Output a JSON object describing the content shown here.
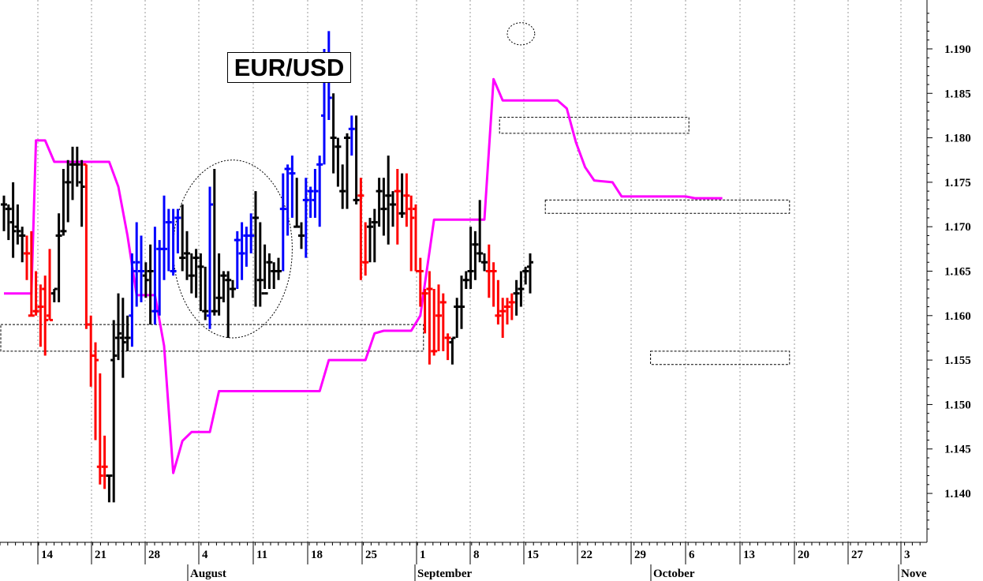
{
  "chart_data": {
    "type": "ohlc",
    "title": "EUR/USD",
    "y_ticks": [
      "1.190",
      "1.185",
      "1.180",
      "1.175",
      "1.170",
      "1.165",
      "1.160",
      "1.155",
      "1.150",
      "1.145",
      "1.140"
    ],
    "ylim": [
      1.1345,
      1.1955
    ],
    "x_tick_labels": [
      "14",
      "21",
      "28",
      "4",
      "11",
      "18",
      "25",
      "1",
      "8",
      "15",
      "22",
      "29",
      "6",
      "13",
      "20",
      "27",
      "3"
    ],
    "month_labels": [
      "August",
      "September",
      "October",
      "Nove"
    ],
    "colors": {
      "up_black": "#000000",
      "down_red": "#ff0000",
      "highlight_blue": "#0000ff",
      "stop_line": "#ff00ff"
    },
    "bars": [
      {
        "o": 1.1725,
        "h": 1.1735,
        "l": 1.1695,
        "c": 1.1725,
        "color": "black"
      },
      {
        "o": 1.172,
        "h": 1.1725,
        "l": 1.1685,
        "c": 1.172,
        "color": "black"
      },
      {
        "o": 1.1705,
        "h": 1.175,
        "l": 1.1665,
        "c": 1.1695,
        "color": "black"
      },
      {
        "o": 1.17,
        "h": 1.1725,
        "l": 1.168,
        "c": 1.1695,
        "color": "black"
      },
      {
        "o": 1.169,
        "h": 1.17,
        "l": 1.166,
        "c": 1.169,
        "color": "black"
      },
      {
        "o": 1.167,
        "h": 1.169,
        "l": 1.164,
        "c": 1.167,
        "color": "red"
      },
      {
        "o": 1.16,
        "h": 1.1695,
        "l": 1.16,
        "c": 1.16,
        "color": "red"
      },
      {
        "o": 1.1605,
        "h": 1.165,
        "l": 1.16,
        "c": 1.1605,
        "color": "red"
      },
      {
        "o": 1.161,
        "h": 1.1635,
        "l": 1.1565,
        "c": 1.161,
        "color": "red"
      },
      {
        "o": 1.163,
        "h": 1.1645,
        "l": 1.1555,
        "c": 1.1595,
        "color": "red"
      },
      {
        "o": 1.16,
        "h": 1.1675,
        "l": 1.1595,
        "c": 1.1595,
        "color": "red"
      },
      {
        "o": 1.1625,
        "h": 1.163,
        "l": 1.1615,
        "c": 1.163,
        "color": "black"
      },
      {
        "o": 1.169,
        "h": 1.1715,
        "l": 1.1615,
        "c": 1.169,
        "color": "black"
      },
      {
        "o": 1.1695,
        "h": 1.1765,
        "l": 1.169,
        "c": 1.1695,
        "color": "black"
      },
      {
        "o": 1.175,
        "h": 1.1775,
        "l": 1.1705,
        "c": 1.175,
        "color": "black"
      },
      {
        "o": 1.177,
        "h": 1.179,
        "l": 1.173,
        "c": 1.177,
        "color": "black"
      },
      {
        "o": 1.177,
        "h": 1.179,
        "l": 1.1745,
        "c": 1.177,
        "color": "black"
      },
      {
        "o": 1.175,
        "h": 1.1775,
        "l": 1.17,
        "c": 1.1745,
        "color": "black"
      },
      {
        "o": 1.177,
        "h": 1.177,
        "l": 1.1585,
        "c": 1.159,
        "color": "red"
      },
      {
        "o": 1.159,
        "h": 1.16,
        "l": 1.152,
        "c": 1.1555,
        "color": "red"
      },
      {
        "o": 1.1555,
        "h": 1.157,
        "l": 1.146,
        "c": 1.155,
        "color": "red"
      },
      {
        "o": 1.143,
        "h": 1.1535,
        "l": 1.141,
        "c": 1.142,
        "color": "red"
      },
      {
        "o": 1.143,
        "h": 1.1465,
        "l": 1.1405,
        "c": 1.143,
        "color": "red"
      },
      {
        "o": 1.142,
        "h": 1.142,
        "l": 1.139,
        "c": 1.142,
        "color": "black"
      },
      {
        "o": 1.155,
        "h": 1.1595,
        "l": 1.139,
        "c": 1.1555,
        "color": "black"
      },
      {
        "o": 1.1575,
        "h": 1.1625,
        "l": 1.155,
        "c": 1.158,
        "color": "black"
      },
      {
        "o": 1.1575,
        "h": 1.162,
        "l": 1.153,
        "c": 1.157,
        "color": "black"
      },
      {
        "o": 1.1575,
        "h": 1.16,
        "l": 1.156,
        "c": 1.1575,
        "color": "black"
      },
      {
        "o": 1.16,
        "h": 1.167,
        "l": 1.1565,
        "c": 1.166,
        "color": "blue"
      },
      {
        "o": 1.165,
        "h": 1.1705,
        "l": 1.161,
        "c": 1.166,
        "color": "blue"
      },
      {
        "o": 1.165,
        "h": 1.169,
        "l": 1.1615,
        "c": 1.165,
        "color": "blue"
      },
      {
        "o": 1.1645,
        "h": 1.166,
        "l": 1.162,
        "c": 1.164,
        "color": "black"
      },
      {
        "o": 1.165,
        "h": 1.168,
        "l": 1.159,
        "c": 1.165,
        "color": "black"
      },
      {
        "o": 1.1605,
        "h": 1.17,
        "l": 1.159,
        "c": 1.1605,
        "color": "blue"
      },
      {
        "o": 1.1675,
        "h": 1.1685,
        "l": 1.16,
        "c": 1.1675,
        "color": "blue"
      },
      {
        "o": 1.1675,
        "h": 1.1735,
        "l": 1.164,
        "c": 1.1675,
        "color": "blue"
      },
      {
        "o": 1.1705,
        "h": 1.172,
        "l": 1.165,
        "c": 1.1705,
        "color": "blue"
      },
      {
        "o": 1.165,
        "h": 1.172,
        "l": 1.1645,
        "c": 1.165,
        "color": "blue"
      },
      {
        "o": 1.171,
        "h": 1.172,
        "l": 1.167,
        "c": 1.171,
        "color": "blue"
      },
      {
        "o": 1.1665,
        "h": 1.1725,
        "l": 1.165,
        "c": 1.1665,
        "color": "black"
      },
      {
        "o": 1.167,
        "h": 1.1695,
        "l": 1.164,
        "c": 1.167,
        "color": "black"
      },
      {
        "o": 1.1645,
        "h": 1.167,
        "l": 1.1625,
        "c": 1.1645,
        "color": "black"
      },
      {
        "o": 1.1665,
        "h": 1.1675,
        "l": 1.162,
        "c": 1.1665,
        "color": "black"
      },
      {
        "o": 1.1655,
        "h": 1.167,
        "l": 1.1605,
        "c": 1.1655,
        "color": "black"
      },
      {
        "o": 1.1605,
        "h": 1.1655,
        "l": 1.1595,
        "c": 1.1605,
        "color": "black"
      },
      {
        "o": 1.16,
        "h": 1.1745,
        "l": 1.1585,
        "c": 1.1725,
        "color": "blue"
      },
      {
        "o": 1.1605,
        "h": 1.1765,
        "l": 1.16,
        "c": 1.1605,
        "color": "black"
      },
      {
        "o": 1.162,
        "h": 1.167,
        "l": 1.16,
        "c": 1.162,
        "color": "black"
      },
      {
        "o": 1.1645,
        "h": 1.165,
        "l": 1.1615,
        "c": 1.1645,
        "color": "black"
      },
      {
        "o": 1.164,
        "h": 1.165,
        "l": 1.1575,
        "c": 1.164,
        "color": "black"
      },
      {
        "o": 1.163,
        "h": 1.164,
        "l": 1.162,
        "c": 1.163,
        "color": "black"
      },
      {
        "o": 1.1685,
        "h": 1.1695,
        "l": 1.163,
        "c": 1.1685,
        "color": "blue"
      },
      {
        "o": 1.167,
        "h": 1.1705,
        "l": 1.164,
        "c": 1.167,
        "color": "blue"
      },
      {
        "o": 1.169,
        "h": 1.17,
        "l": 1.1655,
        "c": 1.169,
        "color": "blue"
      },
      {
        "o": 1.169,
        "h": 1.1715,
        "l": 1.167,
        "c": 1.169,
        "color": "blue"
      },
      {
        "o": 1.171,
        "h": 1.174,
        "l": 1.161,
        "c": 1.171,
        "color": "black"
      },
      {
        "o": 1.164,
        "h": 1.1705,
        "l": 1.161,
        "c": 1.164,
        "color": "black"
      },
      {
        "o": 1.1625,
        "h": 1.168,
        "l": 1.163,
        "c": 1.1625,
        "color": "black"
      },
      {
        "o": 1.166,
        "h": 1.167,
        "l": 1.163,
        "c": 1.166,
        "color": "black"
      },
      {
        "o": 1.165,
        "h": 1.166,
        "l": 1.163,
        "c": 1.165,
        "color": "black"
      },
      {
        "o": 1.165,
        "h": 1.1665,
        "l": 1.164,
        "c": 1.165,
        "color": "black"
      },
      {
        "o": 1.172,
        "h": 1.176,
        "l": 1.165,
        "c": 1.172,
        "color": "blue"
      },
      {
        "o": 1.1765,
        "h": 1.177,
        "l": 1.169,
        "c": 1.1765,
        "color": "blue"
      },
      {
        "o": 1.176,
        "h": 1.178,
        "l": 1.171,
        "c": 1.176,
        "color": "blue"
      },
      {
        "o": 1.17,
        "h": 1.1755,
        "l": 1.17,
        "c": 1.17,
        "color": "black"
      },
      {
        "o": 1.169,
        "h": 1.1705,
        "l": 1.1675,
        "c": 1.169,
        "color": "black"
      },
      {
        "o": 1.173,
        "h": 1.1755,
        "l": 1.1665,
        "c": 1.173,
        "color": "blue"
      },
      {
        "o": 1.174,
        "h": 1.1745,
        "l": 1.171,
        "c": 1.174,
        "color": "blue"
      },
      {
        "o": 1.173,
        "h": 1.1765,
        "l": 1.171,
        "c": 1.174,
        "color": "blue"
      },
      {
        "o": 1.177,
        "h": 1.178,
        "l": 1.17,
        "c": 1.177,
        "color": "blue"
      },
      {
        "o": 1.1825,
        "h": 1.19,
        "l": 1.177,
        "c": 1.1865,
        "color": "blue"
      },
      {
        "o": 1.1865,
        "h": 1.192,
        "l": 1.182,
        "c": 1.1845,
        "color": "blue"
      },
      {
        "o": 1.18,
        "h": 1.185,
        "l": 1.176,
        "c": 1.18,
        "color": "black"
      },
      {
        "o": 1.179,
        "h": 1.18,
        "l": 1.1745,
        "c": 1.179,
        "color": "black"
      },
      {
        "o": 1.174,
        "h": 1.177,
        "l": 1.172,
        "c": 1.174,
        "color": "black"
      },
      {
        "o": 1.18,
        "h": 1.1805,
        "l": 1.172,
        "c": 1.18,
        "color": "black"
      },
      {
        "o": 1.181,
        "h": 1.1825,
        "l": 1.178,
        "c": 1.181,
        "color": "blue"
      },
      {
        "o": 1.173,
        "h": 1.1825,
        "l": 1.1725,
        "c": 1.173,
        "color": "black"
      },
      {
        "o": 1.1735,
        "h": 1.1755,
        "l": 1.164,
        "c": 1.1735,
        "color": "red"
      },
      {
        "o": 1.166,
        "h": 1.1705,
        "l": 1.1645,
        "c": 1.166,
        "color": "red"
      },
      {
        "o": 1.17,
        "h": 1.171,
        "l": 1.166,
        "c": 1.17,
        "color": "black"
      },
      {
        "o": 1.1705,
        "h": 1.172,
        "l": 1.166,
        "c": 1.1705,
        "color": "black"
      },
      {
        "o": 1.174,
        "h": 1.1755,
        "l": 1.17,
        "c": 1.174,
        "color": "black"
      },
      {
        "o": 1.172,
        "h": 1.1755,
        "l": 1.169,
        "c": 1.172,
        "color": "black"
      },
      {
        "o": 1.1735,
        "h": 1.178,
        "l": 1.168,
        "c": 1.1735,
        "color": "black"
      },
      {
        "o": 1.1725,
        "h": 1.174,
        "l": 1.17,
        "c": 1.1725,
        "color": "black"
      },
      {
        "o": 1.174,
        "h": 1.1765,
        "l": 1.168,
        "c": 1.174,
        "color": "red"
      },
      {
        "o": 1.1715,
        "h": 1.176,
        "l": 1.171,
        "c": 1.1715,
        "color": "black"
      },
      {
        "o": 1.1735,
        "h": 1.176,
        "l": 1.17,
        "c": 1.1735,
        "color": "red"
      },
      {
        "o": 1.172,
        "h": 1.1735,
        "l": 1.165,
        "c": 1.171,
        "color": "red"
      },
      {
        "o": 1.172,
        "h": 1.1725,
        "l": 1.165,
        "c": 1.165,
        "color": "red"
      },
      {
        "o": 1.165,
        "h": 1.1665,
        "l": 1.161,
        "c": 1.165,
        "color": "red"
      },
      {
        "o": 1.1625,
        "h": 1.163,
        "l": 1.158,
        "c": 1.1625,
        "color": "red"
      },
      {
        "o": 1.163,
        "h": 1.165,
        "l": 1.1545,
        "c": 1.163,
        "color": "red"
      },
      {
        "o": 1.156,
        "h": 1.163,
        "l": 1.1555,
        "c": 1.156,
        "color": "red"
      },
      {
        "o": 1.16,
        "h": 1.1635,
        "l": 1.156,
        "c": 1.16,
        "color": "red"
      },
      {
        "o": 1.1615,
        "h": 1.1625,
        "l": 1.156,
        "c": 1.1615,
        "color": "red"
      },
      {
        "o": 1.1575,
        "h": 1.158,
        "l": 1.155,
        "c": 1.1575,
        "color": "red"
      },
      {
        "o": 1.157,
        "h": 1.1575,
        "l": 1.1545,
        "c": 1.1575,
        "color": "black"
      },
      {
        "o": 1.161,
        "h": 1.162,
        "l": 1.1575,
        "c": 1.161,
        "color": "black"
      },
      {
        "o": 1.161,
        "h": 1.1645,
        "l": 1.1585,
        "c": 1.161,
        "color": "black"
      },
      {
        "o": 1.164,
        "h": 1.165,
        "l": 1.163,
        "c": 1.164,
        "color": "black"
      },
      {
        "o": 1.165,
        "h": 1.17,
        "l": 1.163,
        "c": 1.165,
        "color": "black"
      },
      {
        "o": 1.168,
        "h": 1.1695,
        "l": 1.164,
        "c": 1.168,
        "color": "black"
      },
      {
        "o": 1.167,
        "h": 1.173,
        "l": 1.166,
        "c": 1.167,
        "color": "black"
      },
      {
        "o": 1.166,
        "h": 1.167,
        "l": 1.165,
        "c": 1.166,
        "color": "black"
      },
      {
        "o": 1.165,
        "h": 1.168,
        "l": 1.162,
        "c": 1.165,
        "color": "red"
      },
      {
        "o": 1.165,
        "h": 1.166,
        "l": 1.161,
        "c": 1.165,
        "color": "red"
      },
      {
        "o": 1.16,
        "h": 1.164,
        "l": 1.159,
        "c": 1.16,
        "color": "red"
      },
      {
        "o": 1.1605,
        "h": 1.162,
        "l": 1.1575,
        "c": 1.1605,
        "color": "red"
      },
      {
        "o": 1.161,
        "h": 1.162,
        "l": 1.159,
        "c": 1.161,
        "color": "red"
      },
      {
        "o": 1.1615,
        "h": 1.1625,
        "l": 1.1595,
        "c": 1.1615,
        "color": "red"
      },
      {
        "o": 1.1625,
        "h": 1.164,
        "l": 1.16,
        "c": 1.1625,
        "color": "black"
      },
      {
        "o": 1.163,
        "h": 1.165,
        "l": 1.161,
        "c": 1.163,
        "color": "black"
      },
      {
        "o": 1.165,
        "h": 1.1655,
        "l": 1.1635,
        "c": 1.165,
        "color": "black"
      },
      {
        "o": 1.1655,
        "h": 1.167,
        "l": 1.1625,
        "c": 1.166,
        "color": "black"
      }
    ],
    "stop_line": [
      {
        "i": 0,
        "v": 1.1625
      },
      {
        "i": 6,
        "v": 1.1625
      },
      {
        "i": 7,
        "v": 1.1797
      },
      {
        "i": 9,
        "v": 1.1797
      },
      {
        "i": 11,
        "v": 1.1773
      },
      {
        "i": 23,
        "v": 1.1773
      },
      {
        "i": 25,
        "v": 1.1745
      },
      {
        "i": 27,
        "v": 1.169
      },
      {
        "i": 29,
        "v": 1.1623
      },
      {
        "i": 33,
        "v": 1.1623
      },
      {
        "i": 35,
        "v": 1.1566
      },
      {
        "i": 37,
        "v": 1.1423
      },
      {
        "i": 39,
        "v": 1.1459
      },
      {
        "i": 41,
        "v": 1.1469
      },
      {
        "i": 45,
        "v": 1.1469
      },
      {
        "i": 47,
        "v": 1.1515
      },
      {
        "i": 69,
        "v": 1.1515
      },
      {
        "i": 71,
        "v": 1.155
      },
      {
        "i": 79,
        "v": 1.155
      },
      {
        "i": 81,
        "v": 1.158
      },
      {
        "i": 83,
        "v": 1.1583
      },
      {
        "i": 89,
        "v": 1.1583
      },
      {
        "i": 91,
        "v": 1.16
      },
      {
        "i": 94,
        "v": 1.1708
      },
      {
        "i": 105,
        "v": 1.1708
      },
      {
        "i": 107,
        "v": 1.1866
      },
      {
        "i": 109,
        "v": 1.1842
      },
      {
        "i": 121,
        "v": 1.1842
      },
      {
        "i": 123,
        "v": 1.1833
      },
      {
        "i": 125,
        "v": 1.1795
      },
      {
        "i": 127,
        "v": 1.1767
      },
      {
        "i": 129,
        "v": 1.1752
      },
      {
        "i": 133,
        "v": 1.175
      },
      {
        "i": 135,
        "v": 1.1734
      },
      {
        "i": 149,
        "v": 1.1734
      },
      {
        "i": 151,
        "v": 1.1732
      },
      {
        "i": 157,
        "v": 1.1732
      }
    ],
    "annotations": {
      "rectangles": [
        {
          "x0": 1.159,
          "x1": 1.156,
          "from": 0,
          "to": 91
        },
        {
          "x0": 1.1823,
          "x1": 1.1805,
          "from": 109,
          "to": 149
        },
        {
          "x0": 1.173,
          "x1": 1.1715,
          "from": 119,
          "to": 171
        },
        {
          "x0": 1.156,
          "x1": 1.1545,
          "from": 142,
          "to": 171
        }
      ],
      "ellipses": [
        {
          "center_index": 50,
          "center_value": 1.1675,
          "span_bars": 26,
          "span_value": 0.02
        },
        {
          "center_index": 113,
          "center_value": 1.1917,
          "span_bars": 6,
          "span_value": 0.0025
        }
      ]
    }
  }
}
